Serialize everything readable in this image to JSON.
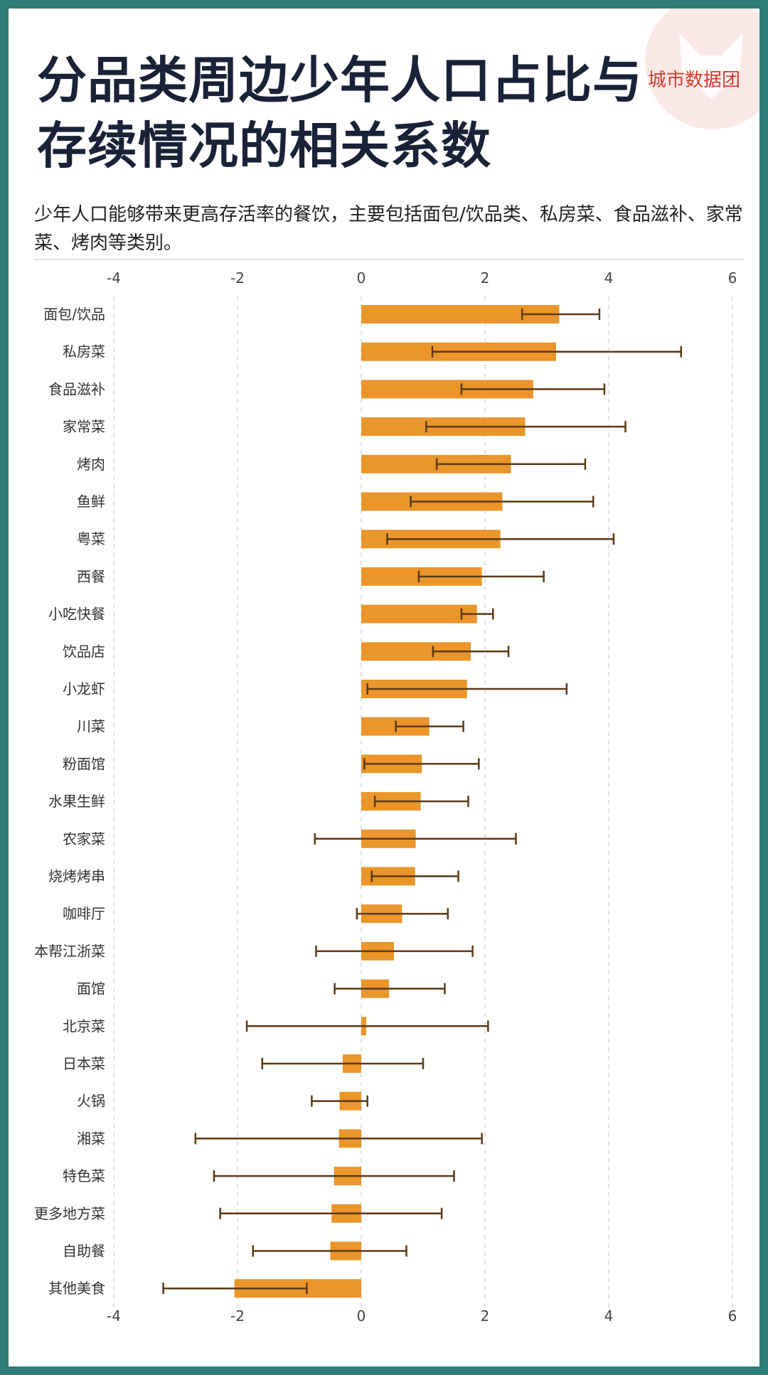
{
  "title": {
    "line1": "分品类周边少年人口占比与",
    "line2": "存续情况的相关系数"
  },
  "subtitle": "少年人口能够带来更高存活率的餐饮，主要包括面包/饮品类、私房菜、食品滋补、家常菜、烤肉等类别。",
  "brand": {
    "name": "城市数据团",
    "color": "#d93a2f",
    "icon": "fox-logo-icon"
  },
  "colors": {
    "bar": "#ea962b",
    "error_bar": "#5b3a14",
    "grid": "#d9d9d9",
    "frame": "#2f7d78"
  },
  "chart_data": {
    "type": "bar",
    "orientation": "horizontal",
    "title": "分品类周边少年人口占比与存续情况的相关系数",
    "xlabel": "",
    "ylabel": "",
    "xlim": [
      -4,
      6
    ],
    "xticks": [
      -4,
      -2,
      0,
      2,
      4,
      6
    ],
    "grid": "vertical dashed",
    "categories": [
      "面包/饮品",
      "私房菜",
      "食品滋补",
      "家常菜",
      "烤肉",
      "鱼鲜",
      "粤菜",
      "西餐",
      "小吃快餐",
      "饮品店",
      "小龙虾",
      "川菜",
      "粉面馆",
      "水果生鲜",
      "农家菜",
      "烧烤烤串",
      "咖啡厅",
      "本帮江浙菜",
      "面馆",
      "北京菜",
      "日本菜",
      "火锅",
      "湘菜",
      "特色菜",
      "更多地方菜",
      "自助餐",
      "其他美食"
    ],
    "values": [
      3.2,
      3.15,
      2.78,
      2.65,
      2.42,
      2.28,
      2.25,
      1.95,
      1.87,
      1.77,
      1.71,
      1.1,
      0.98,
      0.96,
      0.88,
      0.87,
      0.66,
      0.53,
      0.45,
      0.08,
      -0.3,
      -0.35,
      -0.36,
      -0.44,
      -0.48,
      -0.5,
      -2.05
    ],
    "error_low": [
      2.6,
      1.15,
      1.62,
      1.05,
      1.22,
      0.8,
      0.42,
      0.93,
      1.62,
      1.16,
      0.1,
      0.56,
      0.05,
      0.22,
      -0.75,
      0.17,
      -0.07,
      -0.73,
      -0.43,
      -1.85,
      -1.6,
      -0.8,
      -2.68,
      -2.38,
      -2.28,
      -1.75,
      -3.2
    ],
    "error_high": [
      3.85,
      5.17,
      3.93,
      4.27,
      3.62,
      3.75,
      4.08,
      2.95,
      2.13,
      2.38,
      3.32,
      1.65,
      1.9,
      1.73,
      2.5,
      1.57,
      1.4,
      1.8,
      1.35,
      2.05,
      1.0,
      0.1,
      1.95,
      1.5,
      1.3,
      0.73,
      -0.88
    ]
  }
}
